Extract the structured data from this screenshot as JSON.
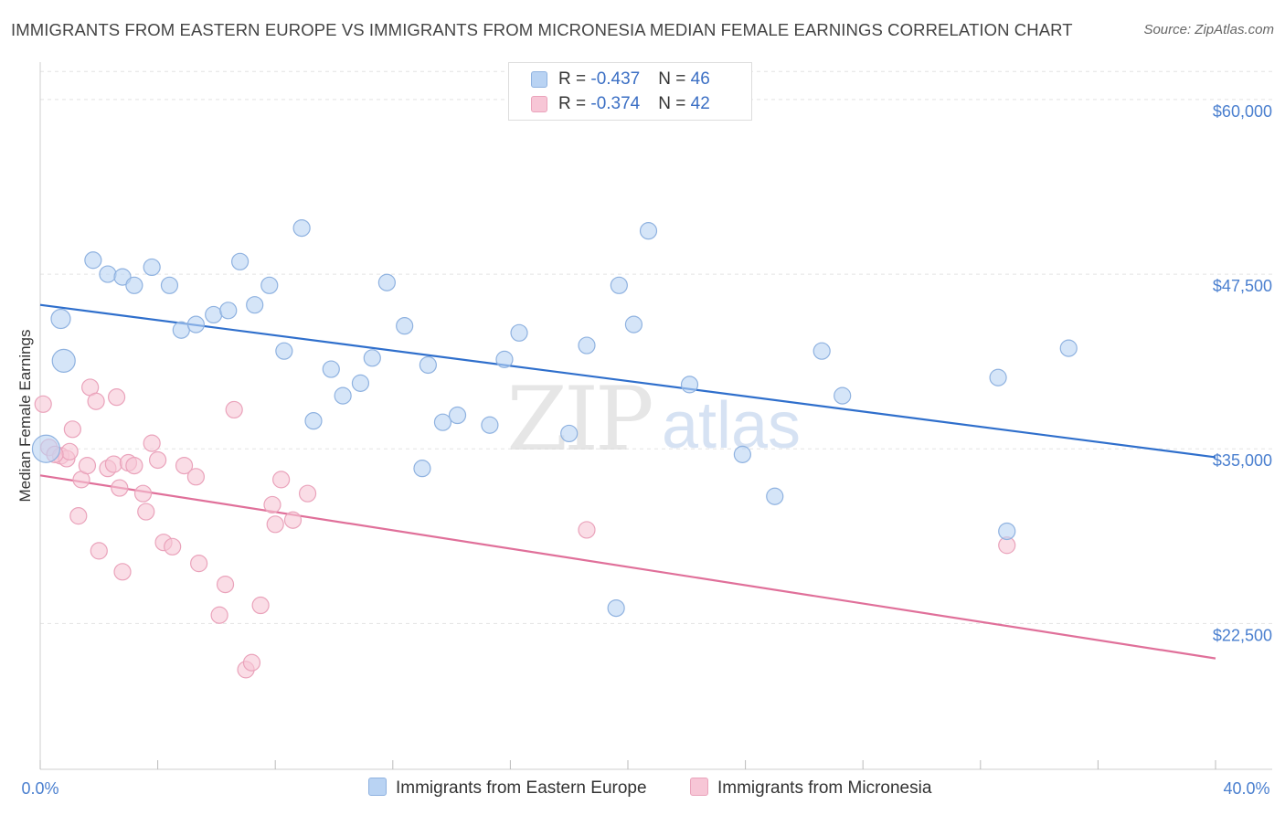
{
  "title": "IMMIGRANTS FROM EASTERN EUROPE VS IMMIGRANTS FROM MICRONESIA MEDIAN FEMALE EARNINGS CORRELATION CHART",
  "source": "Source: ZipAtlas.com",
  "watermark": {
    "zip": "ZIP",
    "atlas": "atlas"
  },
  "colors": {
    "blue_fill": "#b9d3f3",
    "blue_stroke": "#8fb2e0",
    "blue_line": "#2f6fcc",
    "pink_fill": "#f7c6d6",
    "pink_stroke": "#eaa3bb",
    "pink_line": "#e0709a",
    "axis_label": "#4a7fcf",
    "grid": "#e3e3e3"
  },
  "legend": {
    "rows": [
      {
        "r_label": "R = ",
        "r_value": "-0.437",
        "n_label": "N = ",
        "n_value": "46",
        "color": "blue"
      },
      {
        "r_label": "R = ",
        "r_value": "-0.374",
        "n_label": "N = ",
        "n_value": "42",
        "color": "pink"
      }
    ]
  },
  "chart_data": {
    "type": "scatter",
    "title": "IMMIGRANTS FROM EASTERN EUROPE VS IMMIGRANTS FROM MICRONESIA MEDIAN FEMALE EARNINGS CORRELATION CHART",
    "xlabel": "",
    "ylabel": "Median Female Earnings",
    "xlim": [
      0,
      40
    ],
    "ylim": [
      12000,
      62000
    ],
    "x_tick_labels": [
      "0.0%",
      "40.0%"
    ],
    "y_ticks": [
      22500,
      35000,
      47500,
      60000
    ],
    "y_tick_labels": [
      "$22,500",
      "$35,000",
      "$47,500",
      "$60,000"
    ],
    "grid": true,
    "legend_position": "top-center",
    "series": [
      {
        "name": "Immigrants from Eastern Europe",
        "color": "blue",
        "trend": {
          "x": [
            0,
            40
          ],
          "y": [
            45300,
            34400
          ]
        },
        "points": [
          [
            0.2,
            35000
          ],
          [
            0.7,
            44300
          ],
          [
            0.8,
            41300
          ],
          [
            1.8,
            48500
          ],
          [
            2.3,
            47500
          ],
          [
            2.8,
            47300
          ],
          [
            3.2,
            46700
          ],
          [
            3.8,
            48000
          ],
          [
            4.4,
            46700
          ],
          [
            4.8,
            43500
          ],
          [
            5.3,
            43900
          ],
          [
            5.9,
            44600
          ],
          [
            6.4,
            44900
          ],
          [
            6.8,
            48400
          ],
          [
            7.3,
            45300
          ],
          [
            7.8,
            46700
          ],
          [
            8.3,
            42000
          ],
          [
            8.9,
            50800
          ],
          [
            9.3,
            37000
          ],
          [
            9.9,
            40700
          ],
          [
            10.3,
            38800
          ],
          [
            10.9,
            39700
          ],
          [
            11.3,
            41500
          ],
          [
            11.8,
            46900
          ],
          [
            12.4,
            43800
          ],
          [
            13.2,
            41000
          ],
          [
            13.7,
            36900
          ],
          [
            14.2,
            37400
          ],
          [
            15.3,
            36700
          ],
          [
            15.8,
            41400
          ],
          [
            16.3,
            43300
          ],
          [
            18.0,
            36100
          ],
          [
            18.6,
            42400
          ],
          [
            19.7,
            46700
          ],
          [
            20.2,
            43900
          ],
          [
            20.7,
            50600
          ],
          [
            22.1,
            39600
          ],
          [
            23.9,
            34600
          ],
          [
            25.0,
            31600
          ],
          [
            26.6,
            42000
          ],
          [
            27.3,
            38800
          ],
          [
            32.6,
            40100
          ],
          [
            32.9,
            29100
          ],
          [
            35.0,
            42200
          ],
          [
            13.0,
            33600
          ],
          [
            19.6,
            23600
          ]
        ]
      },
      {
        "name": "Immigrants from Micronesia",
        "color": "pink",
        "trend": {
          "x": [
            0,
            40
          ],
          "y": [
            33100,
            20000
          ]
        },
        "points": [
          [
            0.1,
            38200
          ],
          [
            0.3,
            35100
          ],
          [
            0.7,
            34500
          ],
          [
            0.9,
            34300
          ],
          [
            1.0,
            34800
          ],
          [
            1.1,
            36400
          ],
          [
            1.3,
            30200
          ],
          [
            1.4,
            32800
          ],
          [
            1.6,
            33800
          ],
          [
            1.7,
            39400
          ],
          [
            1.9,
            38400
          ],
          [
            2.0,
            27700
          ],
          [
            2.3,
            33600
          ],
          [
            2.5,
            33900
          ],
          [
            2.6,
            38700
          ],
          [
            2.7,
            32200
          ],
          [
            2.8,
            26200
          ],
          [
            3.0,
            34000
          ],
          [
            3.2,
            33800
          ],
          [
            3.5,
            31800
          ],
          [
            3.6,
            30500
          ],
          [
            3.8,
            35400
          ],
          [
            4.0,
            34200
          ],
          [
            4.2,
            28300
          ],
          [
            4.5,
            28000
          ],
          [
            4.9,
            33800
          ],
          [
            5.3,
            33000
          ],
          [
            5.4,
            26800
          ],
          [
            6.1,
            23100
          ],
          [
            6.3,
            25300
          ],
          [
            6.6,
            37800
          ],
          [
            7.0,
            19200
          ],
          [
            7.2,
            19700
          ],
          [
            7.5,
            23800
          ],
          [
            7.9,
            31000
          ],
          [
            8.0,
            29600
          ],
          [
            8.2,
            32800
          ],
          [
            8.6,
            29900
          ],
          [
            9.1,
            31800
          ],
          [
            18.6,
            29200
          ],
          [
            32.9,
            28100
          ],
          [
            0.5,
            34600
          ]
        ]
      }
    ]
  },
  "bottom_legend": {
    "items": [
      {
        "label": "Immigrants from Eastern Europe",
        "color": "blue"
      },
      {
        "label": "Immigrants from Micronesia",
        "color": "pink"
      }
    ]
  }
}
